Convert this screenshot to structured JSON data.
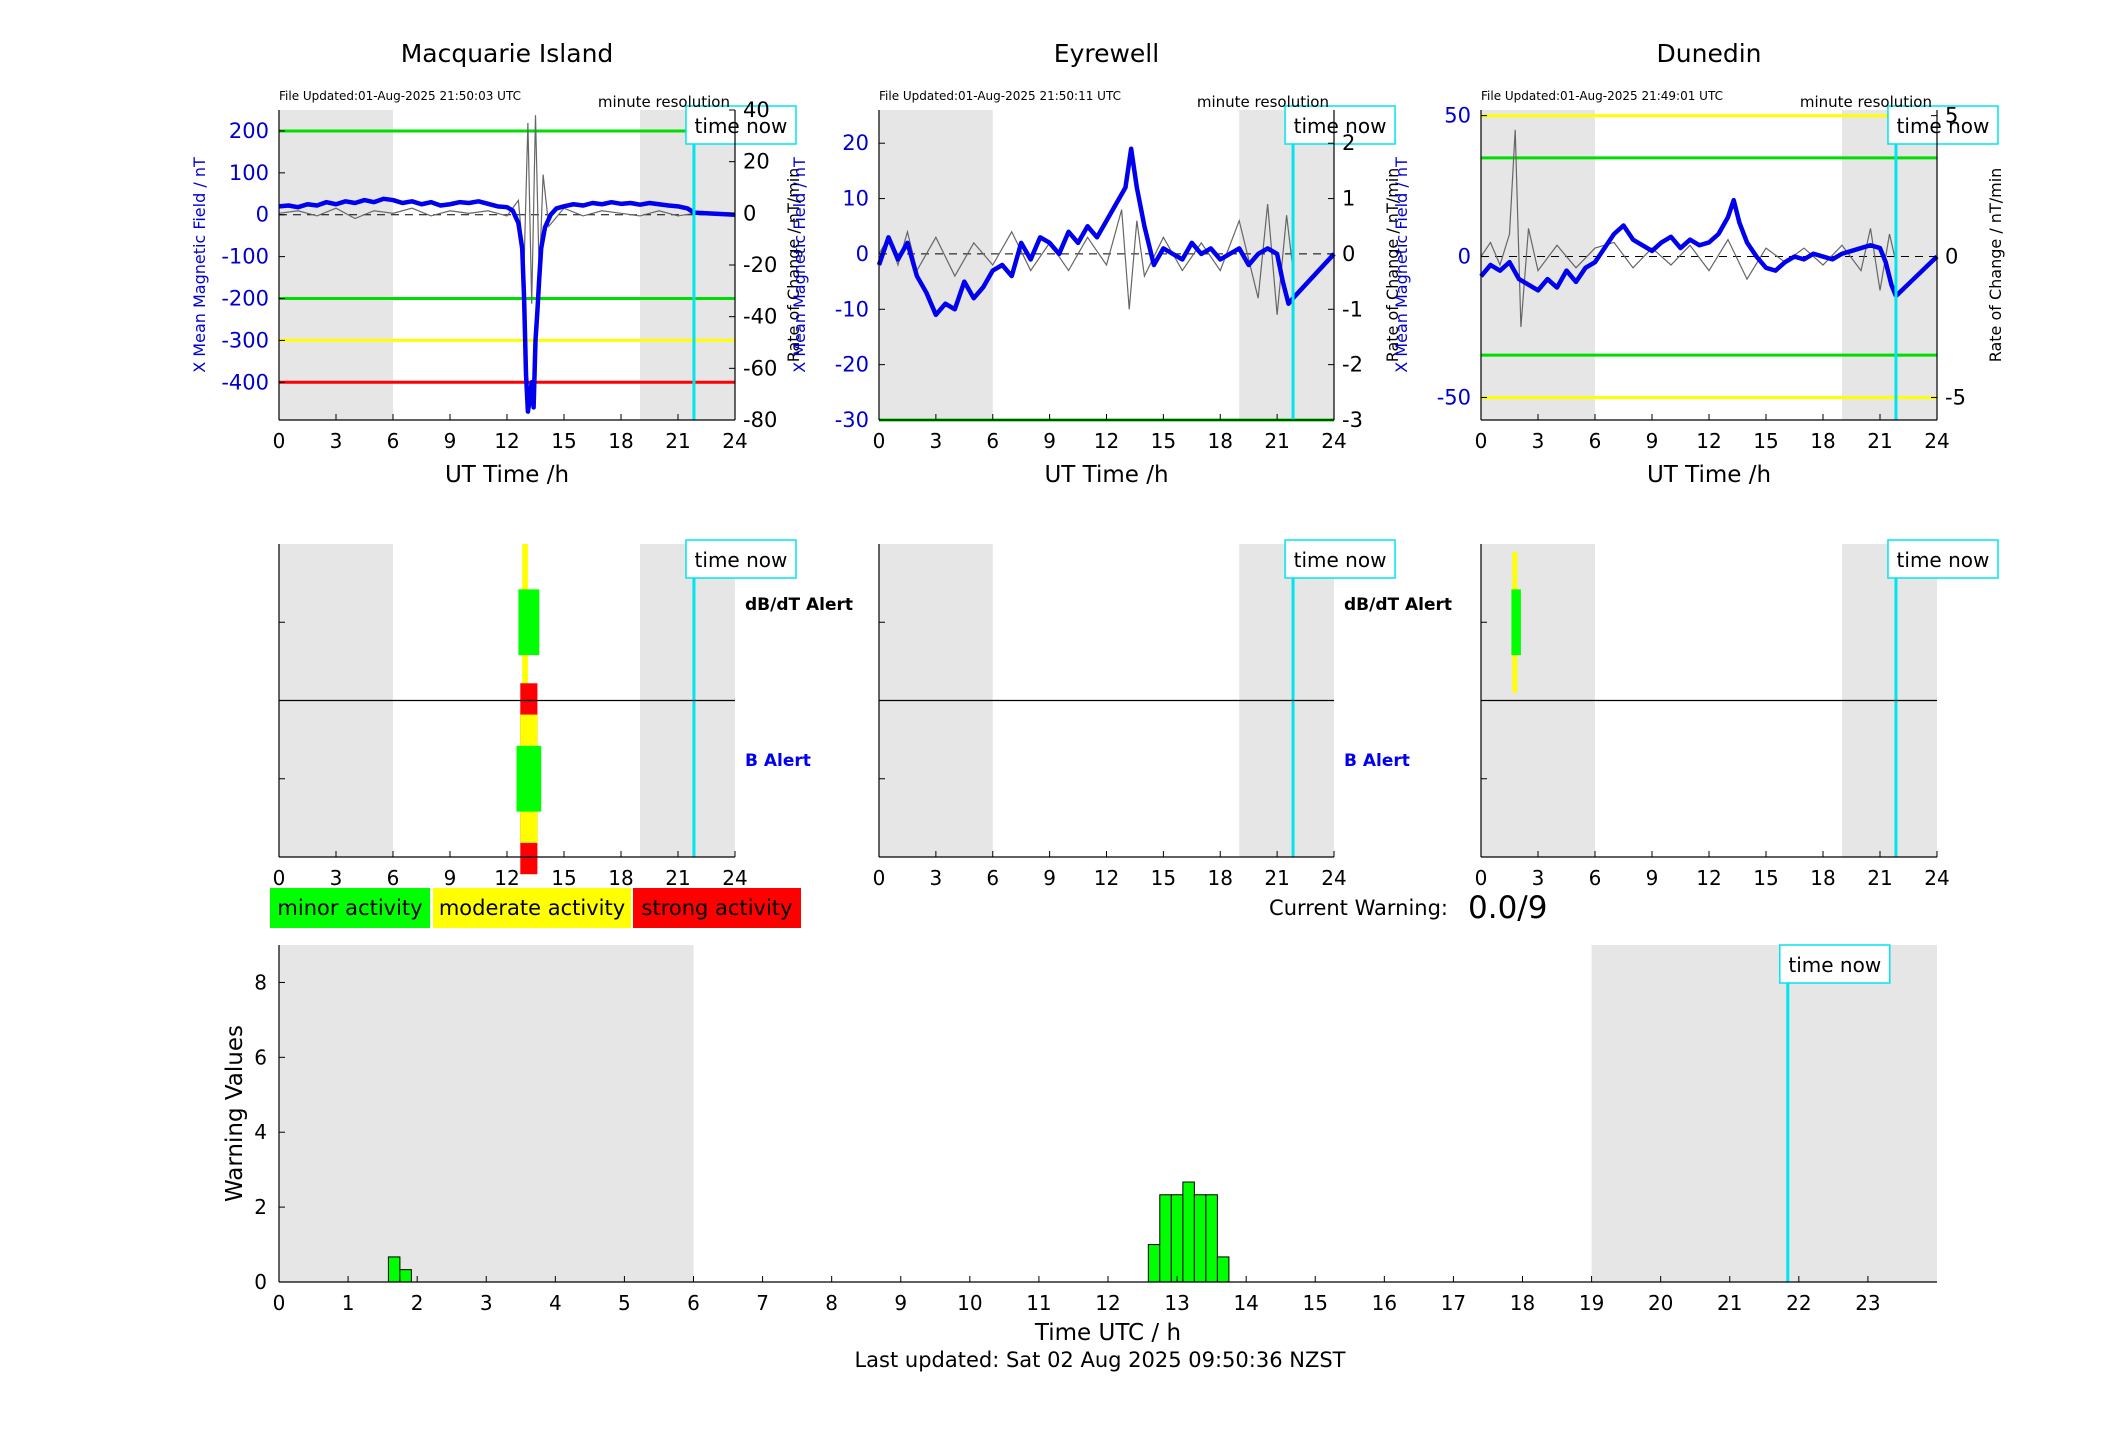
{
  "page": {
    "last_updated": "Last updated: Sat 02 Aug 2025 09:50:36 NZST",
    "current_warning_label": "Current Warning:",
    "current_warning_value": "0.0/9",
    "time_now_label": "time now",
    "time_now_hour": 21.84,
    "night_shading": [
      [
        0,
        6
      ],
      [
        19,
        24
      ]
    ]
  },
  "legend": {
    "items": [
      {
        "label": "minor activity",
        "color": "#00ff00"
      },
      {
        "label": "moderate activity",
        "color": "#ffff00"
      },
      {
        "label": "strong activity",
        "color": "#ff0000"
      }
    ]
  },
  "colors": {
    "field_line": "#0000ee",
    "rate_line": "#666666",
    "green": "#00dd00",
    "yellow": "#ffff00",
    "red": "#ff0000",
    "cyan": "#00e5ee",
    "shade": "#e6e6e6"
  },
  "stations": [
    {
      "name": "Macquarie Island",
      "file_updated": "File Updated:01-Aug-2025 21:50:03 UTC",
      "resolution": "minute resolution",
      "left_label": "X Mean Magnetic Field / nT",
      "right_label": "Rate of Change / nT/min",
      "xlabel": "UT Time /h"
    },
    {
      "name": "Eyrewell",
      "file_updated": "File Updated:01-Aug-2025 21:50:11 UTC",
      "resolution": "minute resolution",
      "left_label": "X Mean Magnetic Field / nT",
      "right_label": "Rate of Change / nT/min",
      "xlabel": "UT Time /h"
    },
    {
      "name": "Dunedin",
      "file_updated": "File Updated:01-Aug-2025 21:49:01 UTC",
      "resolution": "minute resolution",
      "left_label": "X Mean Magnetic Field / nT",
      "right_label": "Rate of Change / nT/min",
      "xlabel": "UT Time /h"
    }
  ],
  "alert_panels": [
    {
      "station": "Macquarie Island",
      "dbdt_label": "dB/dT Alert",
      "b_label": "B Alert"
    },
    {
      "station": "Eyrewell",
      "dbdt_label": "dB/dT Alert",
      "b_label": "B Alert"
    },
    {
      "station": "Dunedin",
      "dbdt_label": "",
      "b_label": ""
    }
  ],
  "chart_data": [
    {
      "type": "line",
      "station": "Macquarie Island",
      "title": "Macquarie Island",
      "xlabel": "UT Time /h",
      "ylabel": "X Mean Magnetic Field / nT",
      "y2label": "Rate of Change / nT/min",
      "xlim": [
        0,
        24
      ],
      "xticks": [
        0,
        3,
        6,
        9,
        12,
        15,
        18,
        21,
        24
      ],
      "ylim": [
        -490,
        250
      ],
      "yticks": [
        -400,
        -300,
        -200,
        -100,
        0,
        100,
        200
      ],
      "y2lim": [
        -80,
        40
      ],
      "y2ticks": [
        -80,
        -60,
        -40,
        -20,
        0,
        20,
        40
      ],
      "thresholds": [
        {
          "value": 200,
          "color": "#00dd00"
        },
        {
          "value": -200,
          "color": "#00dd00"
        },
        {
          "value": -300,
          "color": "#ffff00"
        },
        {
          "value": -400,
          "color": "#ff0000"
        }
      ],
      "series": [
        {
          "name": "X Mean Magnetic Field",
          "axis": "left",
          "x": [
            0,
            0.5,
            1,
            1.5,
            2,
            2.5,
            3,
            3.5,
            4,
            4.5,
            5,
            5.5,
            6,
            6.5,
            7,
            7.5,
            8,
            8.5,
            9,
            9.5,
            10,
            10.5,
            11,
            11.5,
            12,
            12.3,
            12.6,
            12.8,
            12.9,
            13.0,
            13.1,
            13.2,
            13.3,
            13.4,
            13.5,
            13.6,
            13.7,
            13.8,
            14,
            14.3,
            14.6,
            15,
            15.5,
            16,
            16.5,
            17,
            17.5,
            18,
            18.5,
            19,
            19.5,
            20,
            20.5,
            21,
            21.5,
            21.84
          ],
          "y": [
            20,
            22,
            18,
            25,
            22,
            30,
            25,
            32,
            28,
            35,
            30,
            38,
            35,
            28,
            32,
            25,
            30,
            22,
            25,
            30,
            28,
            32,
            26,
            20,
            18,
            10,
            -20,
            -80,
            -200,
            -380,
            -470,
            -440,
            -400,
            -460,
            -300,
            -230,
            -150,
            -80,
            -30,
            0,
            15,
            20,
            25,
            22,
            28,
            25,
            30,
            26,
            28,
            24,
            28,
            25,
            22,
            20,
            15,
            5
          ]
        },
        {
          "name": "Rate of Change",
          "axis": "right",
          "x": [
            0,
            1,
            2,
            3,
            4,
            5,
            6,
            7,
            8,
            9,
            10,
            11,
            12,
            12.6,
            12.9,
            13.1,
            13.3,
            13.5,
            13.7,
            13.9,
            14.2,
            15,
            16,
            17,
            18,
            19,
            20,
            21,
            21.84
          ],
          "y": [
            0,
            1,
            -1,
            2,
            -2,
            1,
            0,
            2,
            -1,
            1,
            0,
            1,
            -1,
            5,
            -20,
            35,
            -35,
            38,
            -25,
            15,
            -5,
            2,
            -1,
            1,
            0,
            -1,
            1,
            -1,
            0
          ]
        }
      ]
    },
    {
      "type": "line",
      "station": "Eyrewell",
      "title": "Eyrewell",
      "xlabel": "UT Time /h",
      "ylabel": "X Mean Magnetic Field / nT",
      "y2label": "Rate of Change / nT/min",
      "xlim": [
        0,
        24
      ],
      "xticks": [
        0,
        3,
        6,
        9,
        12,
        15,
        18,
        21,
        24
      ],
      "ylim": [
        -30,
        26
      ],
      "yticks": [
        -30,
        -20,
        -10,
        0,
        10,
        20
      ],
      "y2lim": [
        -3,
        2.6
      ],
      "y2ticks": [
        -3,
        -2,
        -1,
        0,
        1,
        2
      ],
      "thresholds": [
        {
          "value": -30,
          "color": "#00dd00"
        }
      ],
      "series": [
        {
          "name": "X Mean Magnetic Field",
          "axis": "left",
          "x": [
            0,
            0.5,
            1,
            1.5,
            2,
            2.5,
            3,
            3.5,
            4,
            4.5,
            5,
            5.5,
            6,
            6.5,
            7,
            7.5,
            8,
            8.5,
            9,
            9.5,
            10,
            10.5,
            11,
            11.5,
            12,
            12.5,
            13,
            13.3,
            13.6,
            14,
            14.5,
            15,
            15.5,
            16,
            16.5,
            17,
            17.5,
            18,
            18.5,
            19,
            19.5,
            20,
            20.5,
            21,
            21.3,
            21.6,
            21.84
          ],
          "y": [
            -2,
            3,
            -1,
            2,
            -4,
            -7,
            -11,
            -9,
            -10,
            -5,
            -8,
            -6,
            -3,
            -2,
            -4,
            2,
            -1,
            3,
            2,
            0,
            4,
            2,
            5,
            3,
            6,
            9,
            12,
            19,
            12,
            5,
            -2,
            1,
            0,
            -1,
            2,
            0,
            1,
            -1,
            0,
            1,
            -2,
            0,
            1,
            0,
            -5,
            -9,
            -8
          ]
        },
        {
          "name": "Rate of Change",
          "axis": "right",
          "x": [
            0,
            0.5,
            1,
            1.5,
            2,
            3,
            4,
            5,
            6,
            7,
            8,
            9,
            10,
            11,
            12,
            12.8,
            13.2,
            13.6,
            14,
            15,
            16,
            17,
            18,
            19,
            20,
            20.5,
            21,
            21.5,
            21.84
          ],
          "y": [
            0,
            0.3,
            -0.2,
            0.4,
            -0.3,
            0.3,
            -0.4,
            0.2,
            -0.2,
            0.4,
            -0.3,
            0.2,
            -0.3,
            0.3,
            -0.2,
            0.8,
            -1.0,
            0.6,
            -0.4,
            0.3,
            -0.3,
            0.2,
            -0.3,
            0.6,
            -0.8,
            0.9,
            -1.1,
            0.7,
            -0.3
          ]
        }
      ]
    },
    {
      "type": "line",
      "station": "Dunedin",
      "title": "Dunedin",
      "xlabel": "UT Time /h",
      "ylabel": "X Mean Magnetic Field / nT",
      "y2label": "Rate of Change / nT/min",
      "xlim": [
        0,
        24
      ],
      "xticks": [
        0,
        3,
        6,
        9,
        12,
        15,
        18,
        21,
        24
      ],
      "ylim": [
        -58,
        52
      ],
      "yticks": [
        -50,
        0,
        50
      ],
      "y2lim": [
        -5.8,
        5.2
      ],
      "y2ticks": [
        -5,
        0,
        5
      ],
      "thresholds": [
        {
          "value": 50,
          "color": "#ffff00"
        },
        {
          "value": 35,
          "color": "#00dd00"
        },
        {
          "value": -35,
          "color": "#00dd00"
        },
        {
          "value": -50,
          "color": "#ffff00"
        }
      ],
      "series": [
        {
          "name": "X Mean Magnetic Field",
          "axis": "left",
          "x": [
            0,
            0.5,
            1,
            1.5,
            2,
            2.5,
            3,
            3.5,
            4,
            4.5,
            5,
            5.5,
            6,
            6.5,
            7,
            7.5,
            8,
            8.5,
            9,
            9.5,
            10,
            10.5,
            11,
            11.5,
            12,
            12.5,
            13,
            13.3,
            13.6,
            14,
            14.5,
            15,
            15.5,
            16,
            16.5,
            17,
            17.5,
            18,
            18.5,
            19,
            19.5,
            20,
            20.5,
            21,
            21.3,
            21.6,
            21.84
          ],
          "y": [
            -7,
            -3,
            -5,
            -2,
            -8,
            -10,
            -12,
            -8,
            -11,
            -5,
            -9,
            -4,
            -2,
            3,
            8,
            11,
            6,
            4,
            2,
            5,
            7,
            3,
            6,
            4,
            5,
            8,
            14,
            20,
            12,
            5,
            0,
            -4,
            -5,
            -2,
            0,
            -1,
            1,
            0,
            -1,
            1,
            2,
            3,
            4,
            3,
            -2,
            -10,
            -14
          ]
        },
        {
          "name": "Rate of Change",
          "axis": "right",
          "x": [
            0,
            0.5,
            1,
            1.5,
            1.8,
            2.1,
            2.5,
            3,
            4,
            5,
            6,
            7,
            8,
            9,
            10,
            11,
            12,
            13,
            14,
            15,
            16,
            17,
            18,
            19,
            20,
            20.5,
            21,
            21.5,
            21.84
          ],
          "y": [
            0,
            0.5,
            -0.3,
            0.8,
            4.5,
            -2.5,
            1.0,
            -0.5,
            0.4,
            -0.4,
            0.3,
            0.5,
            -0.4,
            0.3,
            -0.3,
            0.4,
            -0.5,
            0.6,
            -0.8,
            0.3,
            -0.2,
            0.3,
            -0.3,
            0.4,
            -0.5,
            1.0,
            -1.2,
            0.8,
            -0.2
          ]
        }
      ]
    },
    {
      "type": "heatmap",
      "station": "Macquarie Island",
      "xlim": [
        0,
        24
      ],
      "xticks": [
        0,
        3,
        6,
        9,
        12,
        15,
        18,
        21,
        24
      ],
      "rows": [
        "dB/dT Alert",
        "B Alert"
      ],
      "blocks": [
        {
          "row": "dB/dT Alert",
          "x0": 12.8,
          "x1": 13.1,
          "extent": 1.0,
          "color": "#ffff00"
        },
        {
          "row": "dB/dT Alert",
          "x0": 12.6,
          "x1": 13.7,
          "extent": 0.42,
          "color": "#00ff00"
        },
        {
          "row": "B Alert",
          "x0": 12.7,
          "x1": 13.6,
          "extent": 1.22,
          "color": "#ff0000"
        },
        {
          "row": "B Alert",
          "x0": 12.7,
          "x1": 13.6,
          "extent": 0.82,
          "color": "#ffff00"
        },
        {
          "row": "B Alert",
          "x0": 12.5,
          "x1": 13.8,
          "extent": 0.42,
          "color": "#00ff00"
        }
      ]
    },
    {
      "type": "heatmap",
      "station": "Eyrewell",
      "xlim": [
        0,
        24
      ],
      "xticks": [
        0,
        3,
        6,
        9,
        12,
        15,
        18,
        21,
        24
      ],
      "rows": [
        "dB/dT Alert",
        "B Alert"
      ],
      "blocks": []
    },
    {
      "type": "heatmap",
      "station": "Dunedin",
      "xlim": [
        0,
        24
      ],
      "xticks": [
        0,
        3,
        6,
        9,
        12,
        15,
        18,
        21,
        24
      ],
      "rows": [
        "dB/dT Alert",
        "B Alert"
      ],
      "blocks": [
        {
          "row": "dB/dT Alert",
          "x0": 1.65,
          "x1": 1.9,
          "extent": 0.9,
          "color": "#ffff00"
        },
        {
          "row": "dB/dT Alert",
          "x0": 1.6,
          "x1": 2.1,
          "extent": 0.42,
          "color": "#00ff00"
        }
      ]
    },
    {
      "type": "bar",
      "title": "",
      "xlabel": "Time UTC / h",
      "ylabel": "Warning Values",
      "xlim": [
        0,
        24
      ],
      "xticks": [
        0,
        1,
        2,
        3,
        4,
        5,
        6,
        7,
        8,
        9,
        10,
        11,
        12,
        13,
        14,
        15,
        16,
        17,
        18,
        19,
        20,
        21,
        22,
        23
      ],
      "ylim": [
        0,
        9
      ],
      "yticks": [
        0,
        2,
        4,
        6,
        8
      ],
      "bar_width": 0.1667,
      "x": [
        1.667,
        1.833,
        12.667,
        12.833,
        13.0,
        13.167,
        13.333,
        13.5,
        13.667
      ],
      "values": [
        0.67,
        0.33,
        1.0,
        2.33,
        2.33,
        2.67,
        2.33,
        2.33,
        0.67
      ],
      "color": "#00ff00"
    }
  ]
}
